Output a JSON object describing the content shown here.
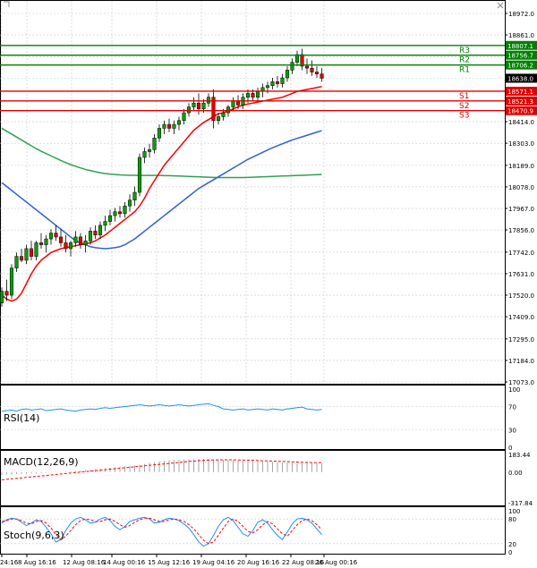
{
  "chart_data": [
    {
      "type": "candlestick",
      "title": "",
      "y_range": [
        17073.0,
        18972.0
      ],
      "y_ticks": [
        18972.0,
        18861.0,
        18750.0,
        18639.0,
        18414.0,
        18303.0,
        18189.0,
        18078.0,
        17967.0,
        17856.0,
        17742.0,
        17631.0,
        17520.0,
        17409.0,
        17295.0,
        17184.0,
        17073.0
      ],
      "current_price": "18638.0",
      "levels": [
        {
          "name": "R3",
          "value": 18807.1,
          "label": "18807.1",
          "color": "#008000"
        },
        {
          "name": "R2",
          "value": 18756.7,
          "label": "18756.7",
          "color": "#008000"
        },
        {
          "name": "R1",
          "value": 18706.2,
          "label": "18706.2",
          "color": "#008000"
        },
        {
          "name": "S1",
          "value": 18571.1,
          "label": "18571.1",
          "color": "#e00000"
        },
        {
          "name": "S2",
          "value": 18521.3,
          "label": "18521.3",
          "color": "#e00000"
        },
        {
          "name": "S3",
          "value": 18470.9,
          "label": "18470.9",
          "color": "#e00000"
        }
      ],
      "candles": [
        [
          17480,
          17560,
          17460,
          17540
        ],
        [
          17540,
          17600,
          17490,
          17520
        ],
        [
          17520,
          17680,
          17500,
          17660
        ],
        [
          17660,
          17740,
          17640,
          17720
        ],
        [
          17720,
          17760,
          17690,
          17700
        ],
        [
          17700,
          17780,
          17680,
          17760
        ],
        [
          17760,
          17800,
          17700,
          17720
        ],
        [
          17720,
          17800,
          17700,
          17790
        ],
        [
          17790,
          17840,
          17760,
          17780
        ],
        [
          17780,
          17830,
          17740,
          17810
        ],
        [
          17810,
          17860,
          17780,
          17840
        ],
        [
          17840,
          17880,
          17800,
          17820
        ],
        [
          17820,
          17860,
          17770,
          17790
        ],
        [
          17790,
          17830,
          17740,
          17760
        ],
        [
          17760,
          17800,
          17720,
          17790
        ],
        [
          17790,
          17850,
          17770,
          17820
        ],
        [
          17820,
          17840,
          17760,
          17780
        ],
        [
          17780,
          17830,
          17740,
          17800
        ],
        [
          17800,
          17870,
          17780,
          17850
        ],
        [
          17850,
          17880,
          17810,
          17830
        ],
        [
          17830,
          17900,
          17810,
          17880
        ],
        [
          17880,
          17930,
          17850,
          17900
        ],
        [
          17900,
          17960,
          17880,
          17930
        ],
        [
          17930,
          17970,
          17900,
          17950
        ],
        [
          17950,
          17980,
          17920,
          17940
        ],
        [
          17940,
          18000,
          17920,
          17980
        ],
        [
          17980,
          18040,
          17950,
          18010
        ],
        [
          18010,
          18080,
          17980,
          18050
        ],
        [
          18050,
          18250,
          18030,
          18230
        ],
        [
          18230,
          18280,
          18200,
          18260
        ],
        [
          18260,
          18300,
          18230,
          18270
        ],
        [
          18270,
          18350,
          18250,
          18330
        ],
        [
          18330,
          18400,
          18310,
          18380
        ],
        [
          18380,
          18420,
          18350,
          18400
        ],
        [
          18400,
          18430,
          18360,
          18380
        ],
        [
          18380,
          18420,
          18350,
          18400
        ],
        [
          18400,
          18440,
          18370,
          18420
        ],
        [
          18420,
          18480,
          18400,
          18460
        ],
        [
          18460,
          18510,
          18440,
          18490
        ],
        [
          18490,
          18540,
          18470,
          18510
        ],
        [
          18510,
          18560,
          18450,
          18480
        ],
        [
          18480,
          18530,
          18460,
          18510
        ],
        [
          18510,
          18560,
          18490,
          18540
        ],
        [
          18540,
          18580,
          18380,
          18420
        ],
        [
          18420,
          18460,
          18400,
          18440
        ],
        [
          18440,
          18480,
          18420,
          18460
        ],
        [
          18460,
          18500,
          18440,
          18490
        ],
        [
          18490,
          18540,
          18470,
          18520
        ],
        [
          18520,
          18550,
          18480,
          18500
        ],
        [
          18500,
          18560,
          18480,
          18540
        ],
        [
          18540,
          18580,
          18510,
          18560
        ],
        [
          18560,
          18580,
          18520,
          18540
        ],
        [
          18540,
          18590,
          18520,
          18570
        ],
        [
          18570,
          18610,
          18540,
          18590
        ],
        [
          18590,
          18620,
          18560,
          18600
        ],
        [
          18600,
          18640,
          18580,
          18620
        ],
        [
          18620,
          18650,
          18590,
          18610
        ],
        [
          18610,
          18660,
          18590,
          18640
        ],
        [
          18640,
          18700,
          18620,
          18680
        ],
        [
          18680,
          18740,
          18660,
          18720
        ],
        [
          18720,
          18780,
          18700,
          18760
        ],
        [
          18760,
          18790,
          18680,
          18700
        ],
        [
          18700,
          18740,
          18660,
          18690
        ],
        [
          18690,
          18730,
          18650,
          18670
        ],
        [
          18670,
          18700,
          18640,
          18660
        ],
        [
          18660,
          18690,
          18620,
          18638
        ]
      ],
      "ma_red": [
        17520,
        17500,
        17490,
        17500,
        17530,
        17580,
        17630,
        17670,
        17700,
        17720,
        17740,
        17750,
        17760,
        17765,
        17770,
        17775,
        17780,
        17785,
        17790,
        17800,
        17815,
        17830,
        17850,
        17870,
        17890,
        17910,
        17930,
        17950,
        17980,
        18020,
        18070,
        18110,
        18150,
        18190,
        18220,
        18250,
        18280,
        18310,
        18340,
        18370,
        18390,
        18410,
        18425,
        18440,
        18455,
        18460,
        18470,
        18480,
        18490,
        18500,
        18505,
        18510,
        18515,
        18520,
        18525,
        18530,
        18535,
        18540,
        18550,
        18560,
        18570,
        18575,
        18580,
        18585,
        18590,
        18595
      ],
      "ma_blue": [
        18100,
        18080,
        18060,
        18040,
        18020,
        18000,
        17980,
        17960,
        17940,
        17920,
        17900,
        17880,
        17860,
        17840,
        17820,
        17800,
        17790,
        17780,
        17770,
        17765,
        17762,
        17760,
        17762,
        17765,
        17770,
        17780,
        17795,
        17810,
        17830,
        17850,
        17870,
        17890,
        17910,
        17930,
        17950,
        17970,
        17990,
        18010,
        18030,
        18050,
        18070,
        18085,
        18100,
        18115,
        18130,
        18145,
        18160,
        18175,
        18190,
        18205,
        18220,
        18232,
        18244,
        18256,
        18268,
        18280,
        18290,
        18300,
        18310,
        18320,
        18328,
        18336,
        18344,
        18352,
        18360,
        18368
      ],
      "ma_green": [
        18380,
        18365,
        18350,
        18335,
        18320,
        18305,
        18290,
        18275,
        18262,
        18250,
        18238,
        18226,
        18214,
        18203,
        18193,
        18184,
        18176,
        18168,
        18162,
        18156,
        18151,
        18147,
        18144,
        18142,
        18140,
        18139,
        18138,
        18138,
        18137,
        18137,
        18137,
        18137,
        18137,
        18136,
        18136,
        18135,
        18134,
        18133,
        18132,
        18131,
        18130,
        18129,
        18128,
        18127,
        18126,
        18126,
        18126,
        18126,
        18126,
        18126,
        18127,
        18128,
        18129,
        18130,
        18131,
        18132,
        18133,
        18134,
        18135,
        18136,
        18137,
        18138,
        18139,
        18140,
        18141,
        18142
      ]
    },
    {
      "type": "line",
      "name": "RSI(14)",
      "y_range": [
        0,
        100
      ],
      "y_ticks": [
        "100",
        "70",
        "30",
        "0"
      ],
      "values": [
        62,
        63,
        64,
        62,
        65,
        66,
        64,
        65,
        66,
        63,
        64,
        65,
        66,
        64,
        63,
        62,
        64,
        65,
        66,
        65,
        67,
        68,
        67,
        68,
        69,
        70,
        71,
        72,
        73,
        72,
        71,
        72,
        73,
        72,
        71,
        72,
        73,
        72,
        71,
        72,
        73,
        74,
        75,
        72,
        70,
        66,
        65,
        64,
        65,
        66,
        64,
        65,
        66,
        65,
        64,
        66,
        65,
        64,
        66,
        67,
        68,
        69,
        66,
        65,
        64,
        65
      ]
    },
    {
      "type": "bar",
      "name": "MACD(12,26,9)",
      "y_range": [
        -317.84,
        183.44
      ],
      "y_ticks": [
        "183.44",
        "0.00",
        "-317.84"
      ],
      "values": [
        -30,
        -28,
        -25,
        -22,
        -20,
        -18,
        -15,
        -12,
        -10,
        -8,
        -5,
        -2,
        2,
        5,
        8,
        12,
        15,
        20,
        25,
        30,
        35,
        40,
        45,
        50,
        55,
        60,
        65,
        70,
        75,
        85,
        95,
        105,
        112,
        118,
        124,
        128,
        130,
        132,
        134,
        136,
        138,
        138,
        136,
        134,
        132,
        128,
        126,
        124,
        122,
        120,
        118,
        115,
        112,
        110,
        108,
        105,
        103,
        101,
        100,
        98,
        97,
        96,
        95,
        94,
        93,
        92
      ],
      "signal": [
        -80,
        -75,
        -70,
        -65,
        -60,
        -55,
        -50,
        -45,
        -40,
        -35,
        -30,
        -25,
        -20,
        -15,
        -10,
        -5,
        0,
        5,
        10,
        15,
        20,
        25,
        30,
        35,
        40,
        45,
        50,
        55,
        60,
        65,
        70,
        75,
        80,
        85,
        90,
        95,
        100,
        105,
        110,
        114,
        118,
        121,
        124,
        126,
        127,
        128,
        128,
        127,
        126,
        125,
        124,
        122,
        120,
        118,
        116,
        114,
        112,
        110,
        108,
        106,
        104,
        102,
        100,
        99,
        98,
        97
      ]
    },
    {
      "type": "line",
      "name": "Stoch(9,6,3)",
      "y_range": [
        0,
        100
      ],
      "y_ticks": [
        "100",
        "80",
        "20",
        "0"
      ],
      "k": [
        70,
        78,
        82,
        80,
        72,
        64,
        70,
        78,
        74,
        60,
        44,
        24,
        30,
        52,
        70,
        80,
        84,
        78,
        70,
        72,
        80,
        84,
        76,
        62,
        54,
        62,
        74,
        78,
        82,
        84,
        80,
        70,
        72,
        78,
        82,
        80,
        76,
        68,
        58,
        42,
        24,
        14,
        20,
        40,
        62,
        78,
        84,
        76,
        60,
        44,
        38,
        52,
        72,
        78,
        70,
        54,
        40,
        30,
        48,
        68,
        80,
        82,
        78,
        70,
        56,
        42
      ],
      "d": [
        74,
        76,
        80,
        80,
        76,
        70,
        68,
        74,
        76,
        70,
        58,
        42,
        30,
        38,
        52,
        66,
        76,
        80,
        78,
        74,
        74,
        78,
        80,
        74,
        66,
        60,
        64,
        72,
        78,
        82,
        82,
        78,
        74,
        74,
        78,
        80,
        78,
        74,
        66,
        56,
        42,
        28,
        20,
        24,
        40,
        58,
        74,
        80,
        74,
        62,
        50,
        46,
        54,
        66,
        74,
        68,
        56,
        44,
        38,
        52,
        66,
        76,
        80,
        76,
        66,
        54
      ]
    }
  ],
  "x_labels": [
    "24:16",
    "8 Aug 16:16",
    "12 Aug 08:16",
    "14 Aug 00:16",
    "15 Aug 12:16",
    "19 Aug 04:16",
    "20 Aug 16:16",
    "22 Aug 08:16",
    "26 Aug 00:16"
  ],
  "colors": {
    "candle_bull": "#00a000",
    "candle_bear": "#e00000",
    "ma_red": "#ff0000",
    "ma_blue": "#3060d0",
    "ma_green": "#30a050",
    "indicator": "#1e90ff",
    "signal": "#ff0000",
    "grid": "#c8c8c8"
  }
}
